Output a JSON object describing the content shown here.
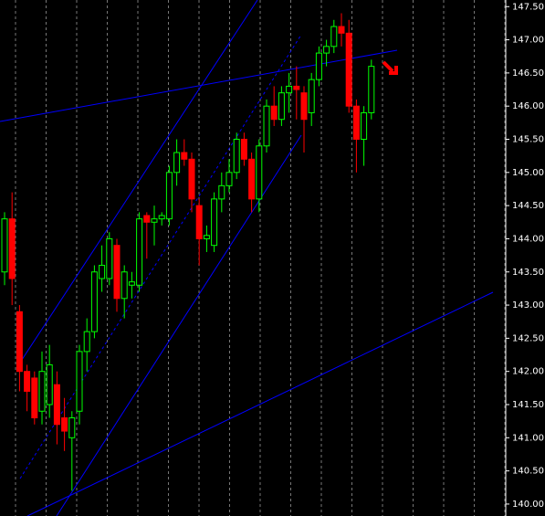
{
  "chart_data": {
    "type": "candlestick",
    "up_color": "#00ff00",
    "down_color": "#ff0000",
    "open": [
      143.5,
      144.3,
      142.9,
      142.0,
      141.9,
      141.4,
      141.5,
      141.8,
      141.3,
      141.0,
      141.4,
      142.3,
      142.6,
      143.4,
      143.4,
      143.9,
      143.1,
      143.3,
      143.3,
      144.35,
      144.25,
      144.3,
      144.3,
      145.0,
      145.3,
      145.2,
      144.5,
      144.0,
      143.9,
      144.6,
      144.8,
      145.0,
      145.5,
      145.2,
      144.6,
      145.4,
      146.0,
      145.8,
      146.2,
      146.3,
      146.2,
      145.9,
      146.4,
      146.8,
      146.9,
      147.2,
      147.1,
      146.0,
      145.5,
      145.9
    ],
    "high": [
      144.4,
      144.7,
      143.0,
      142.1,
      142.0,
      142.3,
      142.4,
      142.0,
      141.6,
      141.4,
      142.4,
      142.8,
      143.6,
      143.9,
      144.1,
      144.0,
      143.6,
      143.5,
      144.4,
      144.4,
      144.5,
      144.4,
      145.1,
      145.5,
      145.5,
      145.3,
      144.6,
      144.2,
      144.7,
      145.0,
      145.2,
      145.6,
      145.6,
      145.3,
      145.5,
      146.1,
      146.3,
      146.3,
      146.5,
      146.6,
      146.3,
      146.5,
      146.9,
      147.0,
      147.3,
      147.4,
      147.3,
      146.1,
      146.0,
      146.7
    ],
    "low": [
      143.3,
      143.0,
      141.7,
      141.4,
      141.2,
      141.2,
      141.3,
      140.9,
      140.8,
      140.2,
      141.2,
      142.0,
      142.5,
      143.2,
      143.3,
      142.9,
      142.8,
      143.1,
      143.2,
      143.7,
      143.9,
      144.2,
      144.2,
      144.8,
      145.1,
      144.4,
      143.6,
      143.8,
      143.8,
      144.4,
      144.7,
      144.9,
      145.1,
      144.4,
      144.4,
      145.3,
      145.7,
      145.7,
      145.9,
      145.8,
      145.3,
      145.7,
      146.3,
      146.6,
      146.8,
      146.9,
      145.9,
      145.0,
      145.1,
      145.8
    ],
    "close": [
      144.3,
      143.4,
      142.0,
      141.7,
      141.3,
      142.0,
      142.1,
      141.2,
      141.1,
      141.3,
      142.3,
      142.6,
      143.5,
      143.6,
      144.0,
      143.1,
      143.5,
      143.35,
      144.3,
      144.25,
      144.3,
      144.35,
      145.0,
      145.3,
      145.2,
      144.6,
      144.0,
      144.05,
      144.6,
      144.8,
      145.0,
      145.5,
      145.2,
      144.6,
      145.4,
      146.0,
      145.8,
      146.2,
      146.3,
      146.25,
      145.8,
      146.4,
      146.8,
      146.9,
      147.2,
      147.1,
      146.0,
      145.5,
      145.9,
      146.6
    ],
    "ylim": [
      139.82,
      147.6
    ],
    "yticks": [
      {
        "value": 140,
        "label": "140.00"
      },
      {
        "value": 140.5,
        "label": "140.50"
      },
      {
        "value": 141,
        "label": "141.00"
      },
      {
        "value": 141.5,
        "label": "141.50"
      },
      {
        "value": 142,
        "label": "142.00"
      },
      {
        "value": 142.5,
        "label": "142.50"
      },
      {
        "value": 143,
        "label": "143.00"
      },
      {
        "value": 143.5,
        "label": "143.50"
      },
      {
        "value": 144,
        "label": "144.00"
      },
      {
        "value": 144.5,
        "label": "144.50"
      },
      {
        "value": 145,
        "label": "145.00"
      },
      {
        "value": 145.5,
        "label": "145.50"
      },
      {
        "value": 146,
        "label": "146.00"
      },
      {
        "value": 146.5,
        "label": "146.50"
      },
      {
        "value": 147,
        "label": "147.00"
      },
      {
        "value": 147.5,
        "label": "147.50"
      }
    ]
  }
}
